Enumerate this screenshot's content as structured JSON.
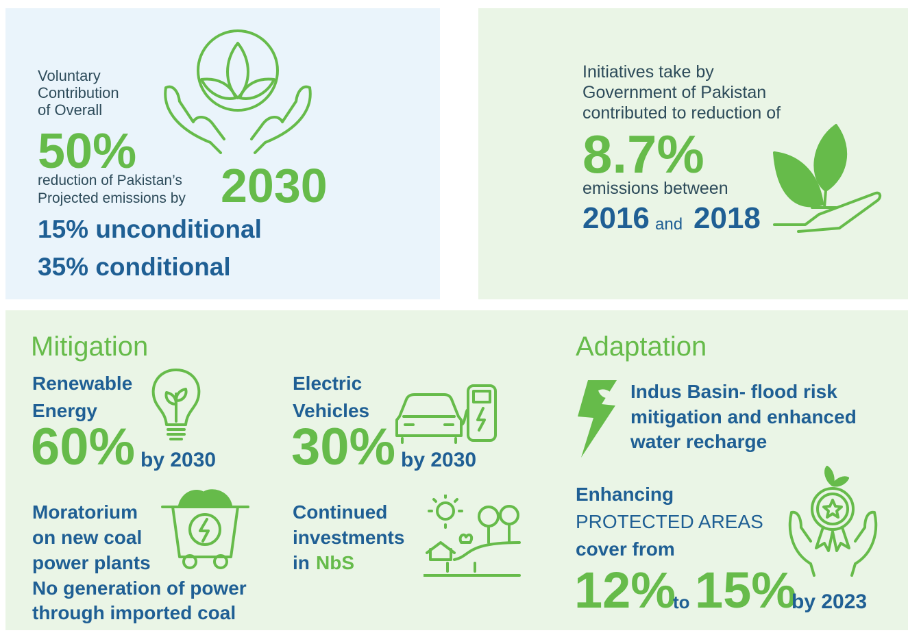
{
  "voluntary_panel": {
    "intro_lines": [
      "Voluntary",
      "Contribution",
      "of Overall"
    ],
    "percent": "50%",
    "reduction_lines": [
      "reduction of Pakistan’s",
      "Projected emissions by"
    ],
    "year": "2030",
    "split_lines": [
      "15% unconditional",
      "35% conditional"
    ]
  },
  "initiatives_panel": {
    "intro_lines": [
      "Initiatives take by",
      "Government of Pakistan",
      "contributed to reduction of"
    ],
    "percent": "8.7%",
    "between": "emissions between",
    "year_from": "2016",
    "and": "and",
    "year_to": "2018"
  },
  "mitigation": {
    "heading": "Mitigation",
    "renewable": {
      "lines": [
        "Renewable",
        "Energy"
      ],
      "percent": "60%",
      "by": "by 2030"
    },
    "electric": {
      "lines": [
        "Electric",
        "Vehicles"
      ],
      "percent": "30%",
      "by": "by 2030"
    },
    "coal": {
      "lines": [
        "Moratorium",
        "on new coal",
        "power plants",
        "No generation of power",
        "through imported coal"
      ]
    },
    "nbs": {
      "lines": [
        "Continued",
        "investments"
      ],
      "prefix": "in",
      "highlight": "NbS"
    }
  },
  "adaptation": {
    "heading": "Adaptation",
    "indus": {
      "lines": [
        "Indus Basin- flood risk",
        "mitigation and enhanced",
        "water recharge"
      ]
    },
    "protected": {
      "lines": [
        "Enhancing",
        "PROTECTED AREAS",
        "cover from"
      ],
      "from": "12%",
      "to": "to",
      "target": "15%",
      "by": "by 2023"
    }
  }
}
